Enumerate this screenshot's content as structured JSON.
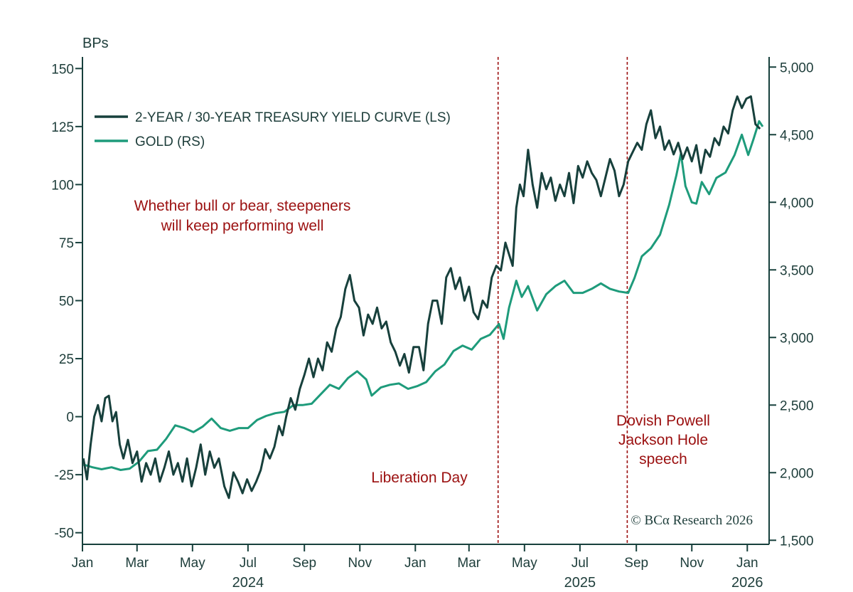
{
  "chart_data": {
    "type": "line",
    "y_left_unit": "BPs",
    "y_left_ticks": [
      "150",
      "125",
      "100",
      "75",
      "50",
      "25",
      "0",
      "-25",
      "-50"
    ],
    "y_left_range": [
      -55,
      155
    ],
    "y_right_ticks": [
      "5,000",
      "4,500",
      "4,000",
      "3,500",
      "3,000",
      "2,500",
      "2,000",
      "1,500"
    ],
    "y_right_range": [
      1470,
      5075
    ],
    "x_range": [
      "2024-01-01",
      "2026-01-25"
    ],
    "x_month_ticks": [
      {
        "label": "Jan",
        "date": "2024-01-01"
      },
      {
        "label": "Mar",
        "date": "2024-03-01"
      },
      {
        "label": "May",
        "date": "2024-05-01"
      },
      {
        "label": "Jul",
        "date": "2024-07-01"
      },
      {
        "label": "Sep",
        "date": "2024-09-01"
      },
      {
        "label": "Nov",
        "date": "2024-11-01"
      },
      {
        "label": "Jan",
        "date": "2025-01-01"
      },
      {
        "label": "Mar",
        "date": "2025-03-01"
      },
      {
        "label": "May",
        "date": "2025-05-01"
      },
      {
        "label": "Jul",
        "date": "2025-07-01"
      },
      {
        "label": "Sep",
        "date": "2025-09-01"
      },
      {
        "label": "Nov",
        "date": "2025-11-01"
      },
      {
        "label": "Jan",
        "date": "2026-01-01"
      }
    ],
    "x_year_labels": [
      {
        "label": "2024",
        "date": "2024-07-01"
      },
      {
        "label": "2025",
        "date": "2025-07-01"
      },
      {
        "label": "2026",
        "date": "2026-01-01"
      }
    ],
    "series": [
      {
        "name": "2-YEAR / 30-YEAR TREASURY YIELD CURVE (LS)",
        "axis": "left",
        "color": "#17403c",
        "points": [
          [
            "2024-01-02",
            -18
          ],
          [
            "2024-01-06",
            -27
          ],
          [
            "2024-01-10",
            -12
          ],
          [
            "2024-01-14",
            0
          ],
          [
            "2024-01-18",
            5
          ],
          [
            "2024-01-22",
            -2
          ],
          [
            "2024-01-26",
            8
          ],
          [
            "2024-01-30",
            9
          ],
          [
            "2024-02-03",
            -2
          ],
          [
            "2024-02-07",
            2
          ],
          [
            "2024-02-11",
            -12
          ],
          [
            "2024-02-15",
            -18
          ],
          [
            "2024-02-20",
            -10
          ],
          [
            "2024-02-25",
            -20
          ],
          [
            "2024-03-01",
            -15
          ],
          [
            "2024-03-06",
            -28
          ],
          [
            "2024-03-11",
            -20
          ],
          [
            "2024-03-16",
            -25
          ],
          [
            "2024-03-21",
            -18
          ],
          [
            "2024-03-26",
            -28
          ],
          [
            "2024-03-31",
            -22
          ],
          [
            "2024-04-05",
            -15
          ],
          [
            "2024-04-10",
            -25
          ],
          [
            "2024-04-15",
            -20
          ],
          [
            "2024-04-20",
            -28
          ],
          [
            "2024-04-25",
            -18
          ],
          [
            "2024-04-30",
            -30
          ],
          [
            "2024-05-05",
            -22
          ],
          [
            "2024-05-10",
            -12
          ],
          [
            "2024-05-15",
            -25
          ],
          [
            "2024-05-20",
            -15
          ],
          [
            "2024-05-25",
            -22
          ],
          [
            "2024-05-30",
            -18
          ],
          [
            "2024-06-05",
            -30
          ],
          [
            "2024-06-10",
            -35
          ],
          [
            "2024-06-15",
            -24
          ],
          [
            "2024-06-20",
            -28
          ],
          [
            "2024-06-25",
            -33
          ],
          [
            "2024-06-30",
            -27
          ],
          [
            "2024-07-05",
            -32
          ],
          [
            "2024-07-10",
            -28
          ],
          [
            "2024-07-15",
            -23
          ],
          [
            "2024-07-20",
            -14
          ],
          [
            "2024-07-25",
            -18
          ],
          [
            "2024-07-30",
            -13
          ],
          [
            "2024-08-04",
            -4
          ],
          [
            "2024-08-08",
            -8
          ],
          [
            "2024-08-12",
            0
          ],
          [
            "2024-08-17",
            8
          ],
          [
            "2024-08-22",
            3
          ],
          [
            "2024-08-27",
            12
          ],
          [
            "2024-09-01",
            18
          ],
          [
            "2024-09-06",
            25
          ],
          [
            "2024-09-11",
            17
          ],
          [
            "2024-09-16",
            25
          ],
          [
            "2024-09-21",
            20
          ],
          [
            "2024-09-26",
            32
          ],
          [
            "2024-10-01",
            28
          ],
          [
            "2024-10-06",
            38
          ],
          [
            "2024-10-11",
            43
          ],
          [
            "2024-10-16",
            55
          ],
          [
            "2024-10-21",
            61
          ],
          [
            "2024-10-26",
            50
          ],
          [
            "2024-10-31",
            47
          ],
          [
            "2024-11-05",
            35
          ],
          [
            "2024-11-10",
            44
          ],
          [
            "2024-11-15",
            40
          ],
          [
            "2024-11-20",
            47
          ],
          [
            "2024-11-25",
            38
          ],
          [
            "2024-11-30",
            41
          ],
          [
            "2024-12-05",
            32
          ],
          [
            "2024-12-10",
            28
          ],
          [
            "2024-12-15",
            22
          ],
          [
            "2024-12-20",
            27
          ],
          [
            "2024-12-25",
            19
          ],
          [
            "2024-12-30",
            30
          ],
          [
            "2025-01-05",
            30
          ],
          [
            "2025-01-10",
            20
          ],
          [
            "2025-01-15",
            40
          ],
          [
            "2025-01-20",
            50
          ],
          [
            "2025-01-25",
            50
          ],
          [
            "2025-01-30",
            40
          ],
          [
            "2025-02-04",
            60
          ],
          [
            "2025-02-09",
            64
          ],
          [
            "2025-02-14",
            55
          ],
          [
            "2025-02-19",
            60
          ],
          [
            "2025-02-24",
            50
          ],
          [
            "2025-03-01",
            56
          ],
          [
            "2025-03-06",
            45
          ],
          [
            "2025-03-11",
            42
          ],
          [
            "2025-03-16",
            50
          ],
          [
            "2025-03-21",
            47
          ],
          [
            "2025-03-26",
            60
          ],
          [
            "2025-03-31",
            65
          ],
          [
            "2025-04-05",
            63
          ],
          [
            "2025-04-10",
            75
          ],
          [
            "2025-04-14",
            70
          ],
          [
            "2025-04-18",
            65
          ],
          [
            "2025-04-22",
            90
          ],
          [
            "2025-04-26",
            100
          ],
          [
            "2025-04-30",
            95
          ],
          [
            "2025-05-05",
            115
          ],
          [
            "2025-05-10",
            100
          ],
          [
            "2025-05-15",
            90
          ],
          [
            "2025-05-20",
            105
          ],
          [
            "2025-05-25",
            98
          ],
          [
            "2025-05-30",
            103
          ],
          [
            "2025-06-04",
            93
          ],
          [
            "2025-06-09",
            100
          ],
          [
            "2025-06-14",
            95
          ],
          [
            "2025-06-19",
            105
          ],
          [
            "2025-06-24",
            92
          ],
          [
            "2025-06-29",
            108
          ],
          [
            "2025-07-04",
            103
          ],
          [
            "2025-07-09",
            110
          ],
          [
            "2025-07-14",
            105
          ],
          [
            "2025-07-19",
            102
          ],
          [
            "2025-07-24",
            95
          ],
          [
            "2025-07-29",
            103
          ],
          [
            "2025-08-03",
            111
          ],
          [
            "2025-08-08",
            106
          ],
          [
            "2025-08-13",
            95
          ],
          [
            "2025-08-18",
            100
          ],
          [
            "2025-08-23",
            110
          ],
          [
            "2025-08-28",
            114
          ],
          [
            "2025-09-02",
            118
          ],
          [
            "2025-09-07",
            115
          ],
          [
            "2025-09-12",
            126
          ],
          [
            "2025-09-17",
            132
          ],
          [
            "2025-09-22",
            120
          ],
          [
            "2025-09-27",
            125
          ],
          [
            "2025-10-02",
            115
          ],
          [
            "2025-10-07",
            119
          ],
          [
            "2025-10-12",
            113
          ],
          [
            "2025-10-17",
            118
          ],
          [
            "2025-10-22",
            111
          ],
          [
            "2025-10-27",
            116
          ],
          [
            "2025-11-01",
            110
          ],
          [
            "2025-11-06",
            117
          ],
          [
            "2025-11-11",
            105
          ],
          [
            "2025-11-16",
            115
          ],
          [
            "2025-11-21",
            112
          ],
          [
            "2025-11-26",
            120
          ],
          [
            "2025-12-01",
            117
          ],
          [
            "2025-12-06",
            125
          ],
          [
            "2025-12-11",
            122
          ],
          [
            "2025-12-16",
            132
          ],
          [
            "2025-12-21",
            138
          ],
          [
            "2025-12-26",
            133
          ],
          [
            "2025-12-31",
            137
          ],
          [
            "2026-01-05",
            138
          ],
          [
            "2026-01-10",
            126
          ],
          [
            "2026-01-15",
            124
          ]
        ]
      },
      {
        "name": "GOLD (RS)",
        "axis": "right",
        "color": "#1e9b7b",
        "points": [
          [
            "2024-01-02",
            2060
          ],
          [
            "2024-01-12",
            2040
          ],
          [
            "2024-01-22",
            2025
          ],
          [
            "2024-02-02",
            2040
          ],
          [
            "2024-02-12",
            2020
          ],
          [
            "2024-02-22",
            2030
          ],
          [
            "2024-03-03",
            2080
          ],
          [
            "2024-03-13",
            2160
          ],
          [
            "2024-03-23",
            2170
          ],
          [
            "2024-04-02",
            2250
          ],
          [
            "2024-04-12",
            2350
          ],
          [
            "2024-04-22",
            2330
          ],
          [
            "2024-05-02",
            2300
          ],
          [
            "2024-05-12",
            2340
          ],
          [
            "2024-05-22",
            2400
          ],
          [
            "2024-06-01",
            2330
          ],
          [
            "2024-06-11",
            2310
          ],
          [
            "2024-06-21",
            2330
          ],
          [
            "2024-07-01",
            2330
          ],
          [
            "2024-07-11",
            2390
          ],
          [
            "2024-07-21",
            2420
          ],
          [
            "2024-07-31",
            2440
          ],
          [
            "2024-08-10",
            2450
          ],
          [
            "2024-08-20",
            2500
          ],
          [
            "2024-08-30",
            2500
          ],
          [
            "2024-09-09",
            2510
          ],
          [
            "2024-09-19",
            2580
          ],
          [
            "2024-09-29",
            2650
          ],
          [
            "2024-10-09",
            2620
          ],
          [
            "2024-10-19",
            2700
          ],
          [
            "2024-10-29",
            2750
          ],
          [
            "2024-11-08",
            2690
          ],
          [
            "2024-11-14",
            2570
          ],
          [
            "2024-11-24",
            2630
          ],
          [
            "2024-12-04",
            2650
          ],
          [
            "2024-12-14",
            2660
          ],
          [
            "2024-12-24",
            2620
          ],
          [
            "2025-01-03",
            2640
          ],
          [
            "2025-01-13",
            2670
          ],
          [
            "2025-01-23",
            2750
          ],
          [
            "2025-02-02",
            2800
          ],
          [
            "2025-02-12",
            2900
          ],
          [
            "2025-02-22",
            2940
          ],
          [
            "2025-03-04",
            2910
          ],
          [
            "2025-03-14",
            2990
          ],
          [
            "2025-03-24",
            3020
          ],
          [
            "2025-04-03",
            3100
          ],
          [
            "2025-04-08",
            2990
          ],
          [
            "2025-04-14",
            3220
          ],
          [
            "2025-04-22",
            3420
          ],
          [
            "2025-04-28",
            3300
          ],
          [
            "2025-05-05",
            3380
          ],
          [
            "2025-05-15",
            3200
          ],
          [
            "2025-05-25",
            3320
          ],
          [
            "2025-06-04",
            3380
          ],
          [
            "2025-06-14",
            3420
          ],
          [
            "2025-06-24",
            3330
          ],
          [
            "2025-07-04",
            3330
          ],
          [
            "2025-07-14",
            3360
          ],
          [
            "2025-07-24",
            3400
          ],
          [
            "2025-08-03",
            3360
          ],
          [
            "2025-08-13",
            3340
          ],
          [
            "2025-08-23",
            3330
          ],
          [
            "2025-08-30",
            3440
          ],
          [
            "2025-09-07",
            3600
          ],
          [
            "2025-09-17",
            3660
          ],
          [
            "2025-09-27",
            3760
          ],
          [
            "2025-10-07",
            3980
          ],
          [
            "2025-10-15",
            4200
          ],
          [
            "2025-10-20",
            4360
          ],
          [
            "2025-10-25",
            4120
          ],
          [
            "2025-11-01",
            4000
          ],
          [
            "2025-11-06",
            3990
          ],
          [
            "2025-11-12",
            4150
          ],
          [
            "2025-11-20",
            4060
          ],
          [
            "2025-11-28",
            4180
          ],
          [
            "2025-12-08",
            4220
          ],
          [
            "2025-12-18",
            4350
          ],
          [
            "2025-12-26",
            4500
          ],
          [
            "2026-01-02",
            4350
          ],
          [
            "2026-01-08",
            4470
          ],
          [
            "2026-01-14",
            4600
          ],
          [
            "2026-01-18",
            4560
          ]
        ]
      }
    ],
    "vertical_markers": [
      {
        "date": "2025-04-02",
        "label": "Liberation Day"
      },
      {
        "date": "2025-08-22",
        "label_lines": [
          "Dovish Powell",
          "Jackson Hole",
          "speech"
        ]
      }
    ],
    "annotation_lines": [
      "Whether bull or bear, steepeners",
      "will keep performing well"
    ],
    "legend_position": "top-left",
    "grid": false,
    "colors": {
      "axis": "#17403c",
      "annotation": "#9b1010",
      "curve": "#17403c",
      "gold": "#1e9b7b"
    },
    "copyright": "© BCα Research 2026"
  }
}
